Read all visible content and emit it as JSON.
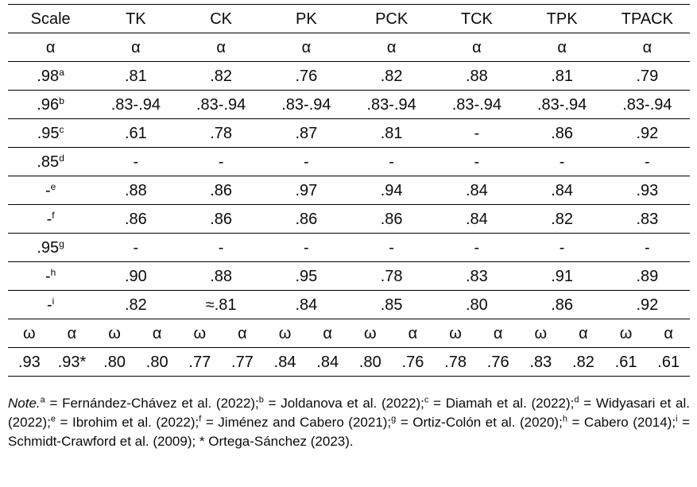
{
  "table": {
    "type": "table",
    "columns": [
      "Scale",
      "TK",
      "CK",
      "PK",
      "PCK",
      "TCK",
      "TPK",
      "TPACK"
    ],
    "alpha_symbol": "α",
    "omega_symbol": "ω",
    "rows": [
      {
        "scale": ".98",
        "sup": "a",
        "values": [
          ".81",
          ".82",
          ".76",
          ".82",
          ".88",
          ".81",
          ".79"
        ]
      },
      {
        "scale": ".96",
        "sup": "b",
        "values": [
          ".83-.94",
          ".83-.94",
          ".83-.94",
          ".83-.94",
          ".83-.94",
          ".83-.94",
          ".83-.94"
        ]
      },
      {
        "scale": ".95",
        "sup": "c",
        "values": [
          ".61",
          ".78",
          ".87",
          ".81",
          "-",
          ".86",
          ".92"
        ]
      },
      {
        "scale": ".85",
        "sup": "d",
        "values": [
          "-",
          "-",
          "-",
          "-",
          "-",
          "-",
          "-"
        ]
      },
      {
        "scale": "-",
        "sup": "e",
        "values": [
          ".88",
          ".86",
          ".97",
          ".94",
          ".84",
          ".84",
          ".93"
        ]
      },
      {
        "scale": "-",
        "sup": "f",
        "values": [
          ".86",
          ".86",
          ".86",
          ".86",
          ".84",
          ".82",
          ".83"
        ]
      },
      {
        "scale": ".95",
        "sup": "g",
        "values": [
          "-",
          "-",
          "-",
          "-",
          "-",
          "-",
          "-"
        ]
      },
      {
        "scale": "-",
        "sup": "h",
        "values": [
          ".90",
          ".88",
          ".95",
          ".78",
          ".83",
          ".91",
          ".89"
        ]
      },
      {
        "scale": "-",
        "sup": "i",
        "values": [
          ".82",
          "≈.81",
          ".84",
          ".85",
          ".80",
          ".86",
          ".92"
        ]
      }
    ],
    "omega_alpha_values": [
      {
        "omega": ".93",
        "alpha": ".93*"
      },
      {
        "omega": ".80",
        "alpha": ".80"
      },
      {
        "omega": ".77",
        "alpha": ".77"
      },
      {
        "omega": ".84",
        "alpha": ".84"
      },
      {
        "omega": ".80",
        "alpha": ".76"
      },
      {
        "omega": ".78",
        "alpha": ".76"
      },
      {
        "omega": ".83",
        "alpha": ".82"
      },
      {
        "omega": ".61",
        "alpha": ".61"
      }
    ]
  },
  "note": {
    "segments": [
      {
        "t": "Note.",
        "style": "italic"
      },
      {
        "t": "a",
        "style": "sup"
      },
      {
        "t": " = Fernández-Chávez et al. (2022);",
        "style": ""
      },
      {
        "t": "b",
        "style": "sup"
      },
      {
        "t": " = Joldanova et al. (2022);",
        "style": ""
      },
      {
        "t": "c",
        "style": "sup"
      },
      {
        "t": " = Diamah et al. (2022);",
        "style": ""
      },
      {
        "t": "d",
        "style": "sup"
      },
      {
        "t": " = Widyasari et al. (2022);",
        "style": ""
      },
      {
        "t": "e",
        "style": "sup"
      },
      {
        "t": " = Ibrohim et al. (2022);",
        "style": ""
      },
      {
        "t": "f",
        "style": "sup"
      },
      {
        "t": " = Jiménez and Cabero (2021);",
        "style": ""
      },
      {
        "t": "g",
        "style": "sup"
      },
      {
        "t": " = Ortiz-Colón et al. (2020);",
        "style": ""
      },
      {
        "t": "h",
        "style": "sup"
      },
      {
        "t": " = Cabero (2014);",
        "style": ""
      },
      {
        "t": "i",
        "style": "sup"
      },
      {
        "t": " = Schmidt-Crawford et al. (2009); * Ortega-Sánchez (2023).",
        "style": ""
      }
    ]
  }
}
